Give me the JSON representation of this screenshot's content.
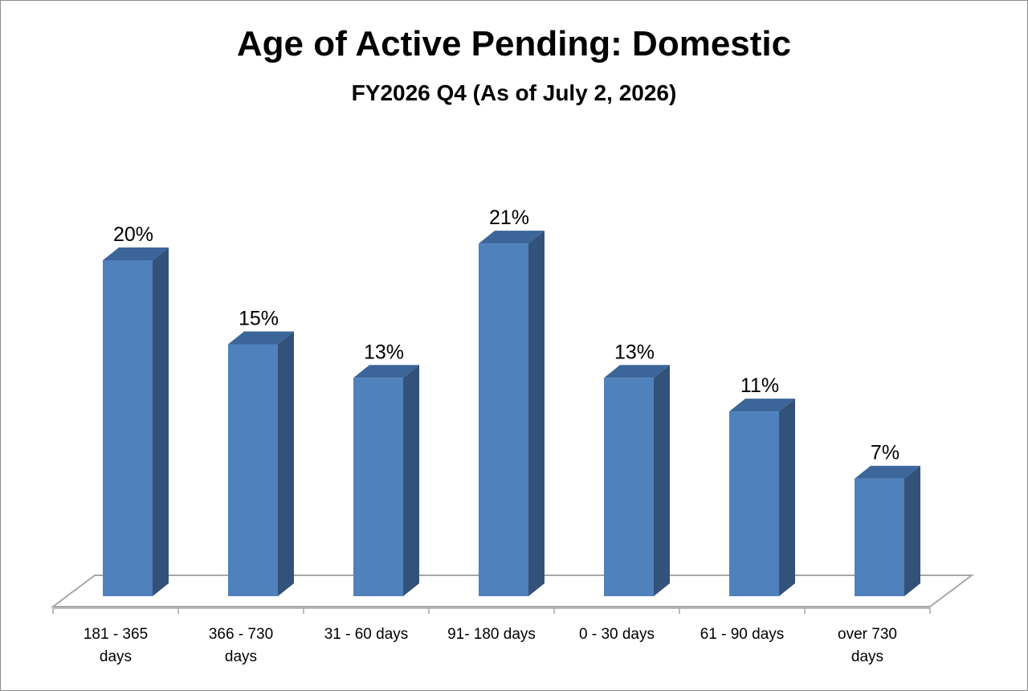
{
  "chart_data": {
    "type": "bar",
    "title": "Age of Active Pending: Domestic",
    "subtitle": "FY2026 Q4 (As of July 2, 2026)",
    "categories": [
      [
        "181 - 365",
        "days"
      ],
      [
        "366 - 730",
        "days"
      ],
      [
        "31 - 60 days"
      ],
      [
        "91- 180 days"
      ],
      [
        "0 - 30 days"
      ],
      [
        "61 - 90 days"
      ],
      [
        "over 730",
        "days"
      ]
    ],
    "values": [
      20,
      15,
      13,
      21,
      13,
      11,
      7
    ],
    "labels": [
      "20%",
      "15%",
      "13%",
      "21%",
      "13%",
      "11%",
      "7%"
    ],
    "value_unit": "%",
    "style": "3d-column",
    "grid": false,
    "legend": "none",
    "colors": {
      "front": "#4f81bd",
      "side": "#33527a",
      "top": "#3c6599",
      "floor": "#a6a6a6"
    }
  }
}
